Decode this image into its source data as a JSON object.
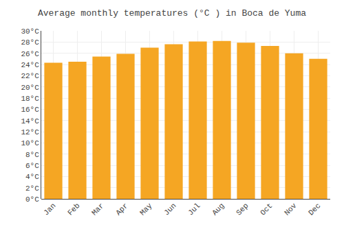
{
  "chart_data": {
    "type": "bar",
    "title": "Average monthly temperatures (°C ) in Boca de Yuma",
    "categories": [
      "Jan",
      "Feb",
      "Mar",
      "Apr",
      "May",
      "Jun",
      "Jul",
      "Aug",
      "Sep",
      "Oct",
      "Nov",
      "Dec"
    ],
    "values": [
      24.3,
      24.5,
      25.4,
      25.9,
      27.0,
      27.6,
      28.1,
      28.2,
      27.9,
      27.3,
      26.0,
      25.0
    ],
    "color": "#F5A623",
    "ylim": [
      0,
      30
    ],
    "yticks": [
      {
        "value": 0,
        "label": "0°C"
      },
      {
        "value": 2,
        "label": "2°C"
      },
      {
        "value": 4,
        "label": "4°C"
      },
      {
        "value": 6,
        "label": "6°C"
      },
      {
        "value": 8,
        "label": "8°C"
      },
      {
        "value": 10,
        "label": "10°C"
      },
      {
        "value": 12,
        "label": "12°C"
      },
      {
        "value": 14,
        "label": "14°C"
      },
      {
        "value": 16,
        "label": "16°C"
      },
      {
        "value": 18,
        "label": "18°C"
      },
      {
        "value": 20,
        "label": "20°C"
      },
      {
        "value": 22,
        "label": "22°C"
      },
      {
        "value": 24,
        "label": "24°C"
      },
      {
        "value": 26,
        "label": "26°C"
      },
      {
        "value": 28,
        "label": "28°C"
      },
      {
        "value": 30,
        "label": "30°C"
      }
    ],
    "grid": true
  }
}
